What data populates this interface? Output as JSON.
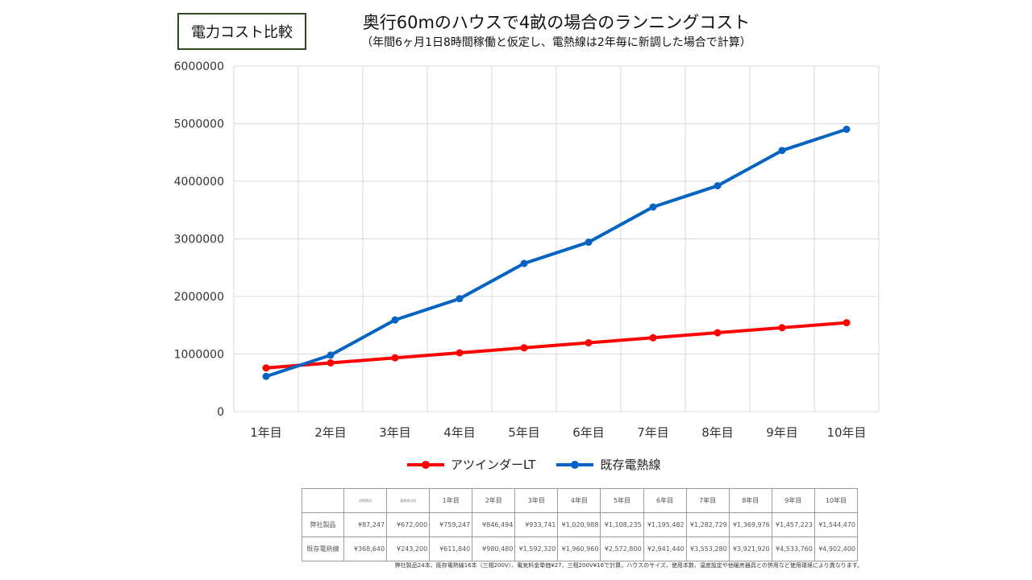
{
  "header": {
    "tag": "電力コスト比較",
    "title": "奥行60mのハウスで4畝の場合のランニングコスト",
    "subtitle": "（年間6ヶ月1日8時間稼働と仮定し、電熱線は2年毎に新調した場合で計算）"
  },
  "chart_data": {
    "type": "line",
    "categories": [
      "1年目",
      "2年目",
      "3年目",
      "4年目",
      "5年目",
      "6年目",
      "7年目",
      "8年目",
      "9年目",
      "10年目"
    ],
    "series": [
      {
        "name": "アツインダーLT",
        "color": "#ff0000",
        "values": [
          759247,
          846494,
          933741,
          1020988,
          1108235,
          1195482,
          1282729,
          1369976,
          1457223,
          1544470
        ]
      },
      {
        "name": "既存電熱線",
        "color": "#0563c1",
        "values": [
          611840,
          980480,
          1592320,
          1960960,
          2572800,
          2941440,
          3553280,
          3921920,
          4533760,
          4902400
        ]
      }
    ],
    "ylim": [
      0,
      6000000
    ],
    "yticks": [
      "0",
      "1000000",
      "2000000",
      "3000000",
      "4000000",
      "5000000",
      "6000000"
    ],
    "grid": true,
    "legend": "bottom"
  },
  "table": {
    "header_notes": [
      "初期費用",
      "電熱線交換"
    ],
    "columns": [
      "1年目",
      "2年目",
      "3年目",
      "4年目",
      "5年目",
      "6年目",
      "7年目",
      "8年目",
      "9年目",
      "10年目"
    ],
    "rows": [
      {
        "label": "弊社製品",
        "cells": [
          "¥87,247",
          "¥672,000",
          "¥759,247",
          "¥846,494",
          "¥933,741",
          "¥1,020,988",
          "¥1,108,235",
          "¥1,195,482",
          "¥1,282,729",
          "¥1,369,976",
          "¥1,457,223",
          "¥1,544,470"
        ]
      },
      {
        "label": "既存電熱線",
        "cells": [
          "¥368,640",
          "¥243,200",
          "¥611,840",
          "¥980,480",
          "¥1,592,320",
          "¥1,960,960",
          "¥2,572,800",
          "¥2,941,440",
          "¥3,553,280",
          "¥3,921,920",
          "¥4,533,760",
          "¥4,902,400"
        ]
      }
    ],
    "footnote": "弊社製品24本、既存電熱線16本（三相200V）、電気料金単価¥27、三相200V¥16で計算。ハウスのサイズ、使用本数、温度設定や他暖房器具との併用など使用環境により異なります。"
  }
}
